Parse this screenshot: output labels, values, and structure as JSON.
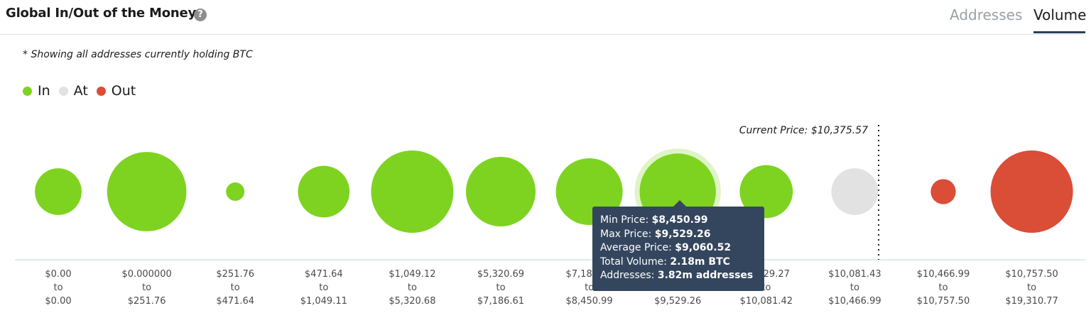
{
  "header": {
    "title": "Global In/Out of the Money",
    "help": "?",
    "tabs": [
      {
        "label": "Addresses",
        "active": false
      },
      {
        "label": "Volume",
        "active": true
      }
    ]
  },
  "note": "* Showing all addresses currently holding BTC",
  "legend": [
    {
      "label": "In",
      "color": "#7ed321"
    },
    {
      "label": "At",
      "color": "#e2e2e2"
    },
    {
      "label": "Out",
      "color": "#da4d37"
    }
  ],
  "current_price_label": "Current Price: $10,375.57",
  "tooltip": {
    "min_label": "Min Price:",
    "min_value": "$8,450.99",
    "max_label": "Max Price:",
    "max_value": "$9,529.26",
    "avg_label": "Average Price:",
    "avg_value": "$9,060.52",
    "vol_label": "Total Volume:",
    "vol_value": "2.18m BTC",
    "addr_label": "Addresses:",
    "addr_value": "3.82m addresses"
  },
  "chart_data": {
    "type": "scatter",
    "title": "Global In/Out of the Money",
    "current_price": 10375.57,
    "size_encoding": "volume",
    "bins": [
      {
        "from": "$0.00",
        "to": "$0.00",
        "status": "In",
        "size": 0.45
      },
      {
        "from": "$0.000000",
        "to": "$251.76",
        "status": "In",
        "size": 1.3
      },
      {
        "from": "$251.76",
        "to": "$471.64",
        "status": "In",
        "size": 0.07
      },
      {
        "from": "$471.64",
        "to": "$1,049.11",
        "status": "In",
        "size": 0.55
      },
      {
        "from": "$1,049.12",
        "to": "$5,320.68",
        "status": "In",
        "size": 1.4
      },
      {
        "from": "$5,320.69",
        "to": "$7,186.61",
        "status": "In",
        "size": 1.0
      },
      {
        "from": "$7,186.62",
        "to": "$8,450.99",
        "status": "In",
        "size": 0.92
      },
      {
        "from": "$8,450.99",
        "to": "$9,529.26",
        "status": "In",
        "size": 1.2,
        "highlighted": true
      },
      {
        "from": "$9,529.27",
        "to": "$10,081.42",
        "status": "In",
        "size": 0.58
      },
      {
        "from": "$10,081.43",
        "to": "$10,466.99",
        "status": "At",
        "size": 0.45
      },
      {
        "from": "$10,466.99",
        "to": "$10,757.50",
        "status": "Out",
        "size": 0.13
      },
      {
        "from": "$10,757.50",
        "to": "$19,310.77",
        "status": "Out",
        "size": 1.4
      }
    ]
  }
}
